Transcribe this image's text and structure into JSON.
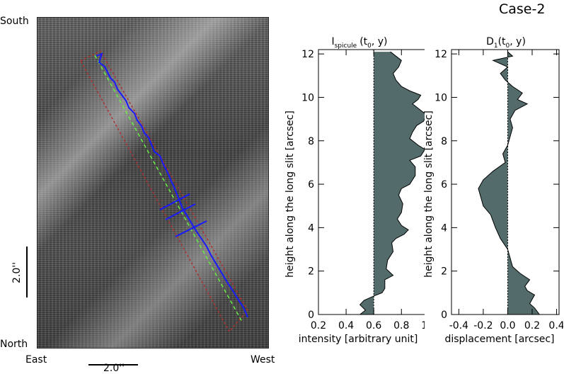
{
  "case_title": "Case-2",
  "image": {
    "label_south": "South",
    "label_north": "North",
    "label_east": "East",
    "label_west": "West",
    "scale_vertical": "2.0''",
    "scale_horizontal": "2.0''"
  },
  "colors": {
    "fill": "#546b6b",
    "blue": "#1a1aff",
    "green": "#66ee44",
    "red": "#b03030"
  },
  "chart_data": [
    {
      "type": "area",
      "title_main": "I",
      "title_sub": "spicule",
      "title_args": "(t",
      "title_zero": "0",
      "title_rest": ", y)",
      "xlabel": "intensity [arbitrary unit]",
      "ylabel": "height along the long slit [arcsec]",
      "xlim": [
        0.2,
        1.08
      ],
      "ylim": [
        0,
        12.2
      ],
      "xticks": [
        "0.2",
        "0.4",
        "0.6",
        "0.8",
        "1.0"
      ],
      "yticks": [
        "0",
        "2",
        "4",
        "6",
        "8",
        "10",
        "12"
      ],
      "baseline": 0.6,
      "points": [
        [
          0.5,
          0
        ],
        [
          0.54,
          0.2
        ],
        [
          0.5,
          0.45
        ],
        [
          0.53,
          0.65
        ],
        [
          0.6,
          0.85
        ],
        [
          0.66,
          1.0
        ],
        [
          0.68,
          1.2
        ],
        [
          0.68,
          1.6
        ],
        [
          0.74,
          1.8
        ],
        [
          0.69,
          2.1
        ],
        [
          0.7,
          2.5
        ],
        [
          0.74,
          2.9
        ],
        [
          0.73,
          3.3
        ],
        [
          0.76,
          3.5
        ],
        [
          0.82,
          3.7
        ],
        [
          0.85,
          3.9
        ],
        [
          0.8,
          4.1
        ],
        [
          0.77,
          4.4
        ],
        [
          0.8,
          4.7
        ],
        [
          0.81,
          5.1
        ],
        [
          0.78,
          5.5
        ],
        [
          0.8,
          5.8
        ],
        [
          0.86,
          6.0
        ],
        [
          0.9,
          6.4
        ],
        [
          0.9,
          6.8
        ],
        [
          0.86,
          7.1
        ],
        [
          0.94,
          7.3
        ],
        [
          0.97,
          7.6
        ],
        [
          0.92,
          7.8
        ],
        [
          0.86,
          8.1
        ],
        [
          0.88,
          8.4
        ],
        [
          0.91,
          8.7
        ],
        [
          0.96,
          8.9
        ],
        [
          0.98,
          9.2
        ],
        [
          0.92,
          9.5
        ],
        [
          0.88,
          9.7
        ],
        [
          0.92,
          9.9
        ],
        [
          0.94,
          10.1
        ],
        [
          0.86,
          10.3
        ],
        [
          0.8,
          10.5
        ],
        [
          0.76,
          10.8
        ],
        [
          0.74,
          11.1
        ],
        [
          0.78,
          11.4
        ],
        [
          0.8,
          11.7
        ],
        [
          0.76,
          11.9
        ],
        [
          0.72,
          12.1
        ]
      ]
    },
    {
      "type": "area",
      "title_main": "D",
      "title_sub": "1",
      "title_args": "(t",
      "title_zero": "0",
      "title_rest": ", y)",
      "xlabel": "displacement [arcsec]",
      "ylabel": "height along the long slit [arcsec]",
      "xlim": [
        -0.46,
        0.42
      ],
      "ylim": [
        0,
        12.2
      ],
      "xticks": [
        "-0.4",
        "-0.2",
        "0.0",
        "0.2",
        "0.4"
      ],
      "yticks": [
        "0",
        "2",
        "4",
        "6",
        "8",
        "10",
        "12"
      ],
      "baseline": 0.0,
      "points": [
        [
          0.26,
          0
        ],
        [
          0.22,
          0.3
        ],
        [
          0.18,
          0.5
        ],
        [
          0.2,
          0.7
        ],
        [
          0.22,
          0.9
        ],
        [
          0.16,
          1.1
        ],
        [
          0.14,
          1.3
        ],
        [
          0.18,
          1.6
        ],
        [
          0.1,
          1.9
        ],
        [
          0.04,
          2.2
        ],
        [
          0.02,
          2.6
        ],
        [
          0.0,
          3.0
        ],
        [
          -0.06,
          3.5
        ],
        [
          -0.1,
          4.0
        ],
        [
          -0.14,
          4.6
        ],
        [
          -0.2,
          5.0
        ],
        [
          -0.22,
          5.4
        ],
        [
          -0.24,
          5.8
        ],
        [
          -0.2,
          6.2
        ],
        [
          -0.12,
          6.6
        ],
        [
          -0.02,
          7.0
        ],
        [
          -0.04,
          7.4
        ],
        [
          0.0,
          7.8
        ],
        [
          0.02,
          8.2
        ],
        [
          0.04,
          8.6
        ],
        [
          0.02,
          9.0
        ],
        [
          0.06,
          9.4
        ],
        [
          0.16,
          9.7
        ],
        [
          0.08,
          9.9
        ],
        [
          0.12,
          10.2
        ],
        [
          0.04,
          10.5
        ],
        [
          -0.02,
          10.8
        ],
        [
          -0.06,
          11.1
        ],
        [
          0.0,
          11.4
        ],
        [
          -0.12,
          11.7
        ],
        [
          0.04,
          11.9
        ],
        [
          0.0,
          12.1
        ]
      ]
    }
  ]
}
